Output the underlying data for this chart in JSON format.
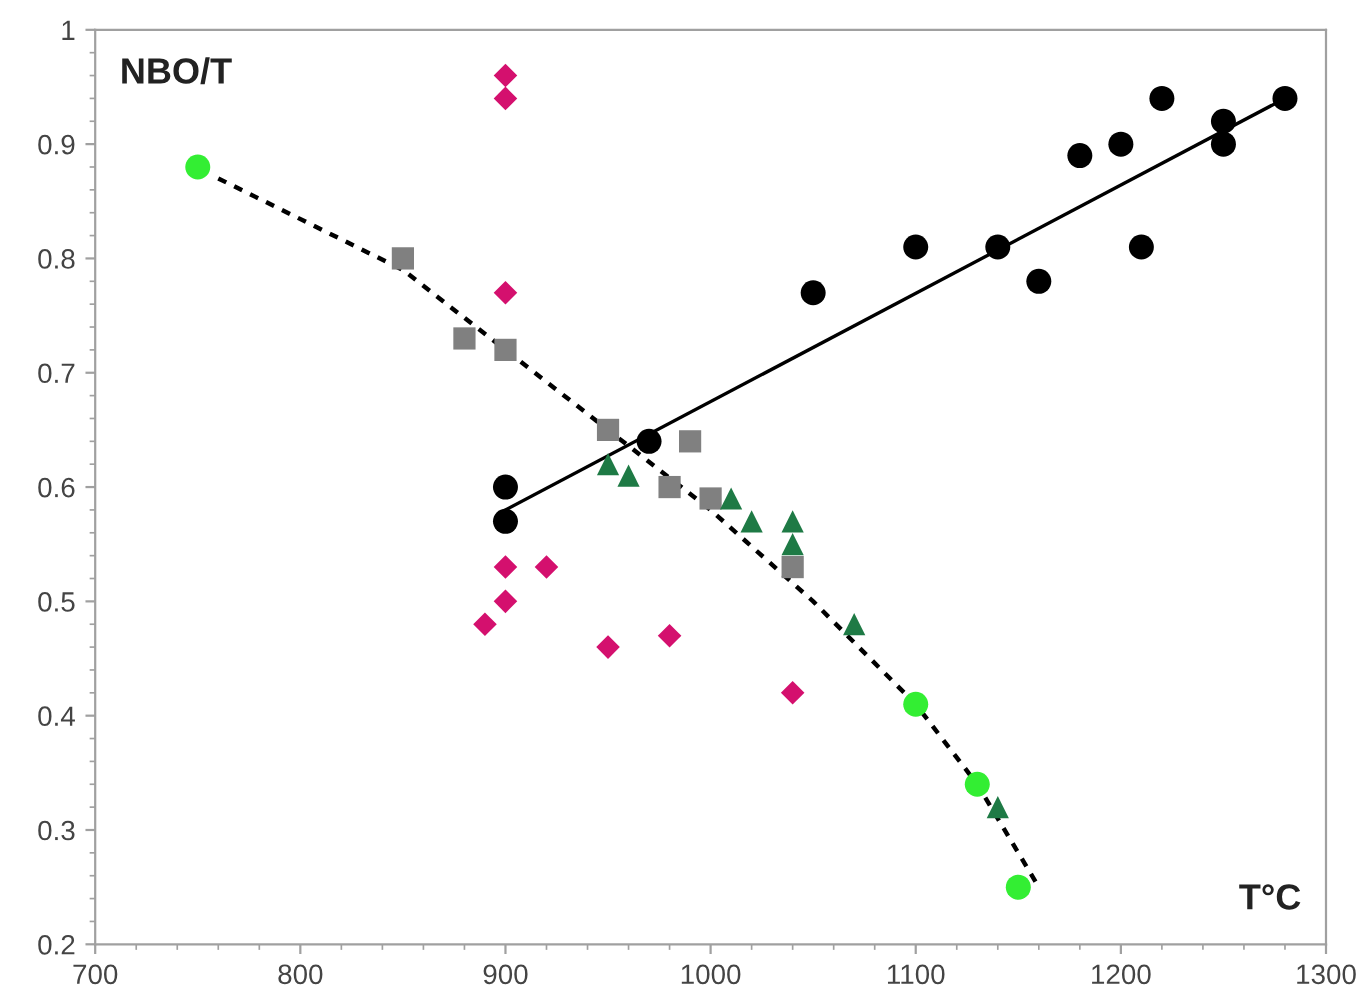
{
  "chart_data": {
    "type": "scatter",
    "grid": false,
    "legend": false,
    "xlim": [
      700,
      1300
    ],
    "xticks": [
      700,
      800,
      900,
      1000,
      1100,
      1200,
      1300
    ],
    "ylim": [
      0.2,
      1
    ],
    "yticks": [
      0.2,
      0.3,
      0.4,
      0.5,
      0.6,
      0.7,
      0.8,
      0.9,
      1
    ],
    "annotations": [
      "NBO/T",
      "T°C"
    ],
    "series": [
      {
        "type": "line",
        "color": "#000000",
        "marker": "none",
        "line_style": "solid",
        "x": [
          900,
          1280
        ],
        "values": [
          0.58,
          0.94
        ]
      },
      {
        "type": "line",
        "color": "#000000",
        "marker": "none",
        "line_style": "dashed",
        "x": [
          760,
          850,
          900,
          950,
          1000,
          1050,
          1100,
          1130,
          1160
        ],
        "values": [
          0.87,
          0.79,
          0.72,
          0.65,
          0.58,
          0.5,
          0.41,
          0.34,
          0.25
        ]
      },
      {
        "color": "#000000",
        "marker": "circle",
        "x": [
          900,
          900,
          970,
          1050,
          1100,
          1140,
          1160,
          1180,
          1200,
          1210,
          1220,
          1250,
          1250,
          1280
        ],
        "values": [
          0.6,
          0.57,
          0.64,
          0.77,
          0.81,
          0.81,
          0.78,
          0.89,
          0.9,
          0.81,
          0.94,
          0.92,
          0.9,
          0.94
        ]
      },
      {
        "color": "#d4106e",
        "marker": "diamond",
        "x": [
          900,
          900,
          900,
          900,
          920,
          900,
          890,
          950,
          980,
          1040
        ],
        "values": [
          0.96,
          0.94,
          0.77,
          0.53,
          0.53,
          0.5,
          0.48,
          0.46,
          0.47,
          0.42
        ]
      },
      {
        "color": "#808080",
        "marker": "square",
        "x": [
          850,
          880,
          900,
          950,
          990,
          980,
          1000,
          1040
        ],
        "values": [
          0.8,
          0.73,
          0.72,
          0.65,
          0.64,
          0.6,
          0.59,
          0.53
        ]
      },
      {
        "color": "#1e7a45",
        "marker": "triangle",
        "x": [
          950,
          960,
          1010,
          1020,
          1040,
          1040,
          1070,
          1140
        ],
        "values": [
          0.62,
          0.61,
          0.59,
          0.57,
          0.57,
          0.55,
          0.48,
          0.32
        ]
      },
      {
        "color": "#33ee33",
        "marker": "circle",
        "x": [
          750,
          1100,
          1130,
          1150
        ],
        "values": [
          0.88,
          0.41,
          0.34,
          0.25
        ]
      }
    ]
  }
}
